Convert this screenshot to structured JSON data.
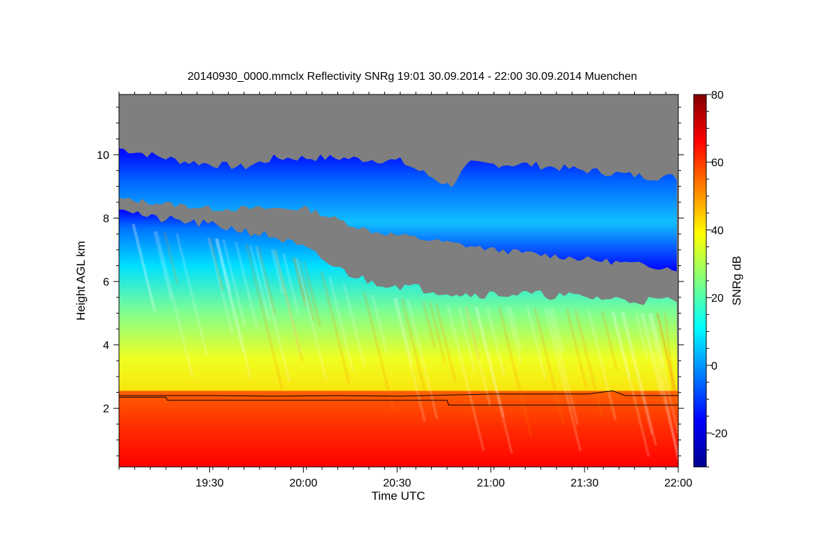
{
  "chart_data": {
    "type": "heatmap",
    "title": "20140930_0000.mmclx Reflectivity SNRg   19:01 30.09.2014 - 22:00 30.09.2014 Muenchen",
    "xlabel": "Time UTC",
    "ylabel": "Height AGL km",
    "colorbar_label": "SNRg dB",
    "x_range_utc": [
      "19:01",
      "22:00"
    ],
    "x_ticks": [
      {
        "label": "19:30",
        "minutes": 29
      },
      {
        "label": "20:00",
        "minutes": 59
      },
      {
        "label": "20:30",
        "minutes": 89
      },
      {
        "label": "21:00",
        "minutes": 119
      },
      {
        "label": "21:30",
        "minutes": 149
      },
      {
        "label": "22:00",
        "minutes": 179
      }
    ],
    "x_minutes_total": 179,
    "ylim": [
      0.15,
      11.9
    ],
    "y_ticks": [
      2,
      4,
      6,
      8,
      10
    ],
    "colorbar_range": [
      -30,
      80
    ],
    "colorbar_ticks": [
      -20,
      0,
      20,
      40,
      60,
      80
    ],
    "no_signal_color": "#7f7f7f",
    "colormap": [
      "#00008f",
      "#0000ff",
      "#0080ff",
      "#00ffff",
      "#80ff80",
      "#ffff00",
      "#ff8000",
      "#ff0000",
      "#800000"
    ],
    "layers": {
      "near_surface_band_top_km": 2.55,
      "near_surface_snr_db": 62,
      "lower_cloud_top_km": [
        {
          "t": 0,
          "h": 8.4
        },
        {
          "t": 10,
          "h": 8.0
        },
        {
          "t": 20,
          "h": 7.9
        },
        {
          "t": 35,
          "h": 7.7
        },
        {
          "t": 50,
          "h": 7.4
        },
        {
          "t": 60,
          "h": 7.0
        },
        {
          "t": 70,
          "h": 6.4
        },
        {
          "t": 80,
          "h": 6.0
        },
        {
          "t": 95,
          "h": 5.8
        },
        {
          "t": 110,
          "h": 5.6
        },
        {
          "t": 130,
          "h": 5.6
        },
        {
          "t": 150,
          "h": 5.5
        },
        {
          "t": 165,
          "h": 5.4
        },
        {
          "t": 179,
          "h": 5.4
        }
      ],
      "upper_layer_top_km": [
        {
          "t": 0,
          "h": 10.2
        },
        {
          "t": 20,
          "h": 9.8
        },
        {
          "t": 40,
          "h": 9.6
        },
        {
          "t": 50,
          "h": 9.9
        },
        {
          "t": 70,
          "h": 9.9
        },
        {
          "t": 90,
          "h": 9.8
        },
        {
          "t": 100,
          "h": 9.3
        },
        {
          "t": 106,
          "h": 9.0
        },
        {
          "t": 112,
          "h": 9.7
        },
        {
          "t": 130,
          "h": 9.7
        },
        {
          "t": 150,
          "h": 9.5
        },
        {
          "t": 170,
          "h": 9.3
        },
        {
          "t": 179,
          "h": 9.3
        }
      ],
      "upper_layer_base_km": [
        {
          "t": 30,
          "h": 8.3
        },
        {
          "t": 60,
          "h": 8.3
        },
        {
          "t": 80,
          "h": 7.6
        },
        {
          "t": 100,
          "h": 7.3
        },
        {
          "t": 120,
          "h": 7.0
        },
        {
          "t": 140,
          "h": 6.8
        },
        {
          "t": 160,
          "h": 6.6
        },
        {
          "t": 179,
          "h": 6.4
        }
      ]
    },
    "boundary_lines_km": [
      {
        "name": "",
        "points": [
          {
            "t": 0,
            "h": 2.4
          },
          {
            "t": 30,
            "h": 2.4
          },
          {
            "t": 50,
            "h": 2.38
          },
          {
            "t": 70,
            "h": 2.4
          },
          {
            "t": 90,
            "h": 2.38
          },
          {
            "t": 120,
            "h": 2.45
          },
          {
            "t": 150,
            "h": 2.45
          },
          {
            "t": 158,
            "h": 2.55
          },
          {
            "t": 162,
            "h": 2.4
          },
          {
            "t": 179,
            "h": 2.4
          }
        ]
      },
      {
        "name": "",
        "points": [
          {
            "t": 0,
            "h": 2.35
          },
          {
            "t": 15,
            "h": 2.35
          },
          {
            "t": 15.5,
            "h": 2.25
          },
          {
            "t": 105,
            "h": 2.25
          },
          {
            "t": 105.5,
            "h": 2.1
          },
          {
            "t": 179,
            "h": 2.1
          }
        ]
      }
    ]
  }
}
